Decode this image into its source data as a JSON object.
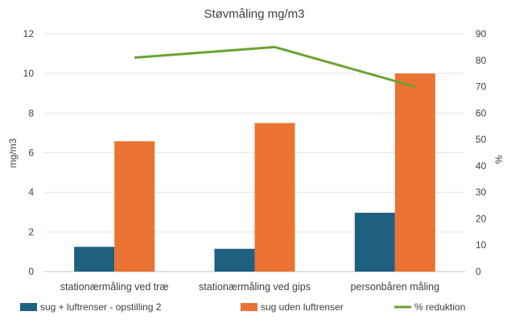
{
  "chart_data": {
    "type": "bar",
    "title": "Støvmåling mg/m3",
    "categories": [
      "stationærmåling ved træ",
      "stationærmåling ved gips",
      "personbåren måling"
    ],
    "series": [
      {
        "name": "sug + luftrenser - opstilling 2",
        "values": [
          1.25,
          1.15,
          2.97
        ],
        "color": "#1f5f80",
        "axis": "left",
        "kind": "bar"
      },
      {
        "name": "sug uden luftrenser",
        "values": [
          6.58,
          7.5,
          10.0
        ],
        "color": "#ea7333",
        "axis": "left",
        "kind": "bar"
      },
      {
        "name": "% reduktion",
        "values": [
          81,
          85,
          70
        ],
        "color": "#6aa232",
        "axis": "right",
        "kind": "line"
      }
    ],
    "ylabel": "mg/m3",
    "ylabel_right": "%",
    "ylim": [
      0,
      12
    ],
    "ylim_right": [
      0,
      90
    ],
    "yticks": [
      "0",
      "2",
      "4",
      "6",
      "8",
      "10",
      "12"
    ],
    "yticks_right": [
      "0",
      "10",
      "20",
      "30",
      "40",
      "50",
      "60",
      "70",
      "80",
      "90"
    ],
    "grid": true,
    "legend_position": "bottom"
  }
}
